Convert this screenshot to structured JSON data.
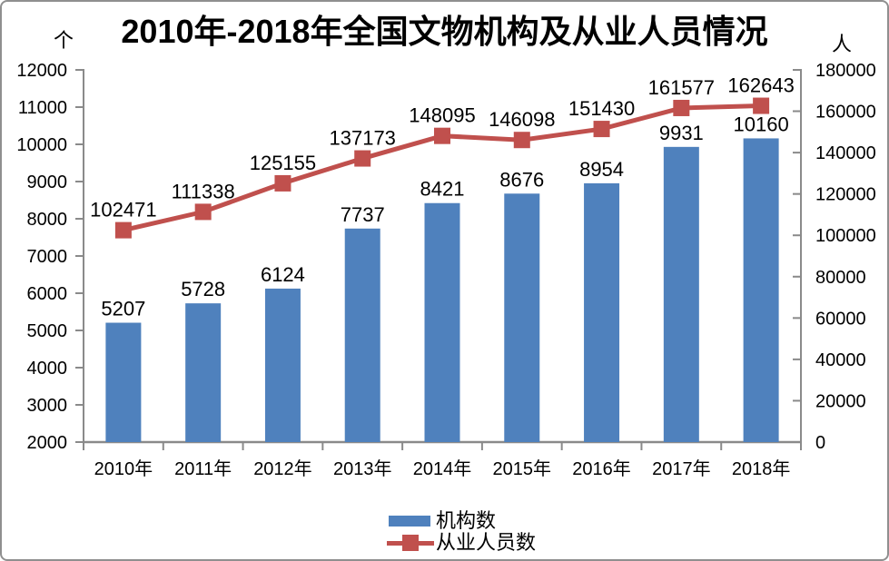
{
  "chart_data": {
    "type": "combo-bar-line",
    "title": "2010年-2018年全国文物机构及从业人员情况",
    "categories": [
      "2010年",
      "2011年",
      "2012年",
      "2013年",
      "2014年",
      "2015年",
      "2016年",
      "2017年",
      "2018年"
    ],
    "series": [
      {
        "name": "机构数",
        "type": "bar",
        "axis": "left",
        "color": "#4F81BD",
        "values": [
          5207,
          5728,
          6124,
          7737,
          8421,
          8676,
          8954,
          9931,
          10160
        ]
      },
      {
        "name": "从业人员数",
        "type": "line",
        "axis": "right",
        "color": "#C0504D",
        "marker": "square",
        "values": [
          102471,
          111338,
          125155,
          137173,
          148095,
          146098,
          151430,
          161577,
          162643
        ]
      }
    ],
    "left_axis": {
      "unit": "个",
      "min": 2000,
      "max": 12000,
      "step": 1000
    },
    "right_axis": {
      "unit": "人",
      "min": 0,
      "max": 180000,
      "step": 20000
    },
    "grid": false,
    "data_labels": true,
    "legend_position": "bottom",
    "styles": {
      "axis_color": "#8a8a8a",
      "text_color": "#000000",
      "background": "#FFFFFF",
      "border_color": "#8f8f8f"
    }
  }
}
